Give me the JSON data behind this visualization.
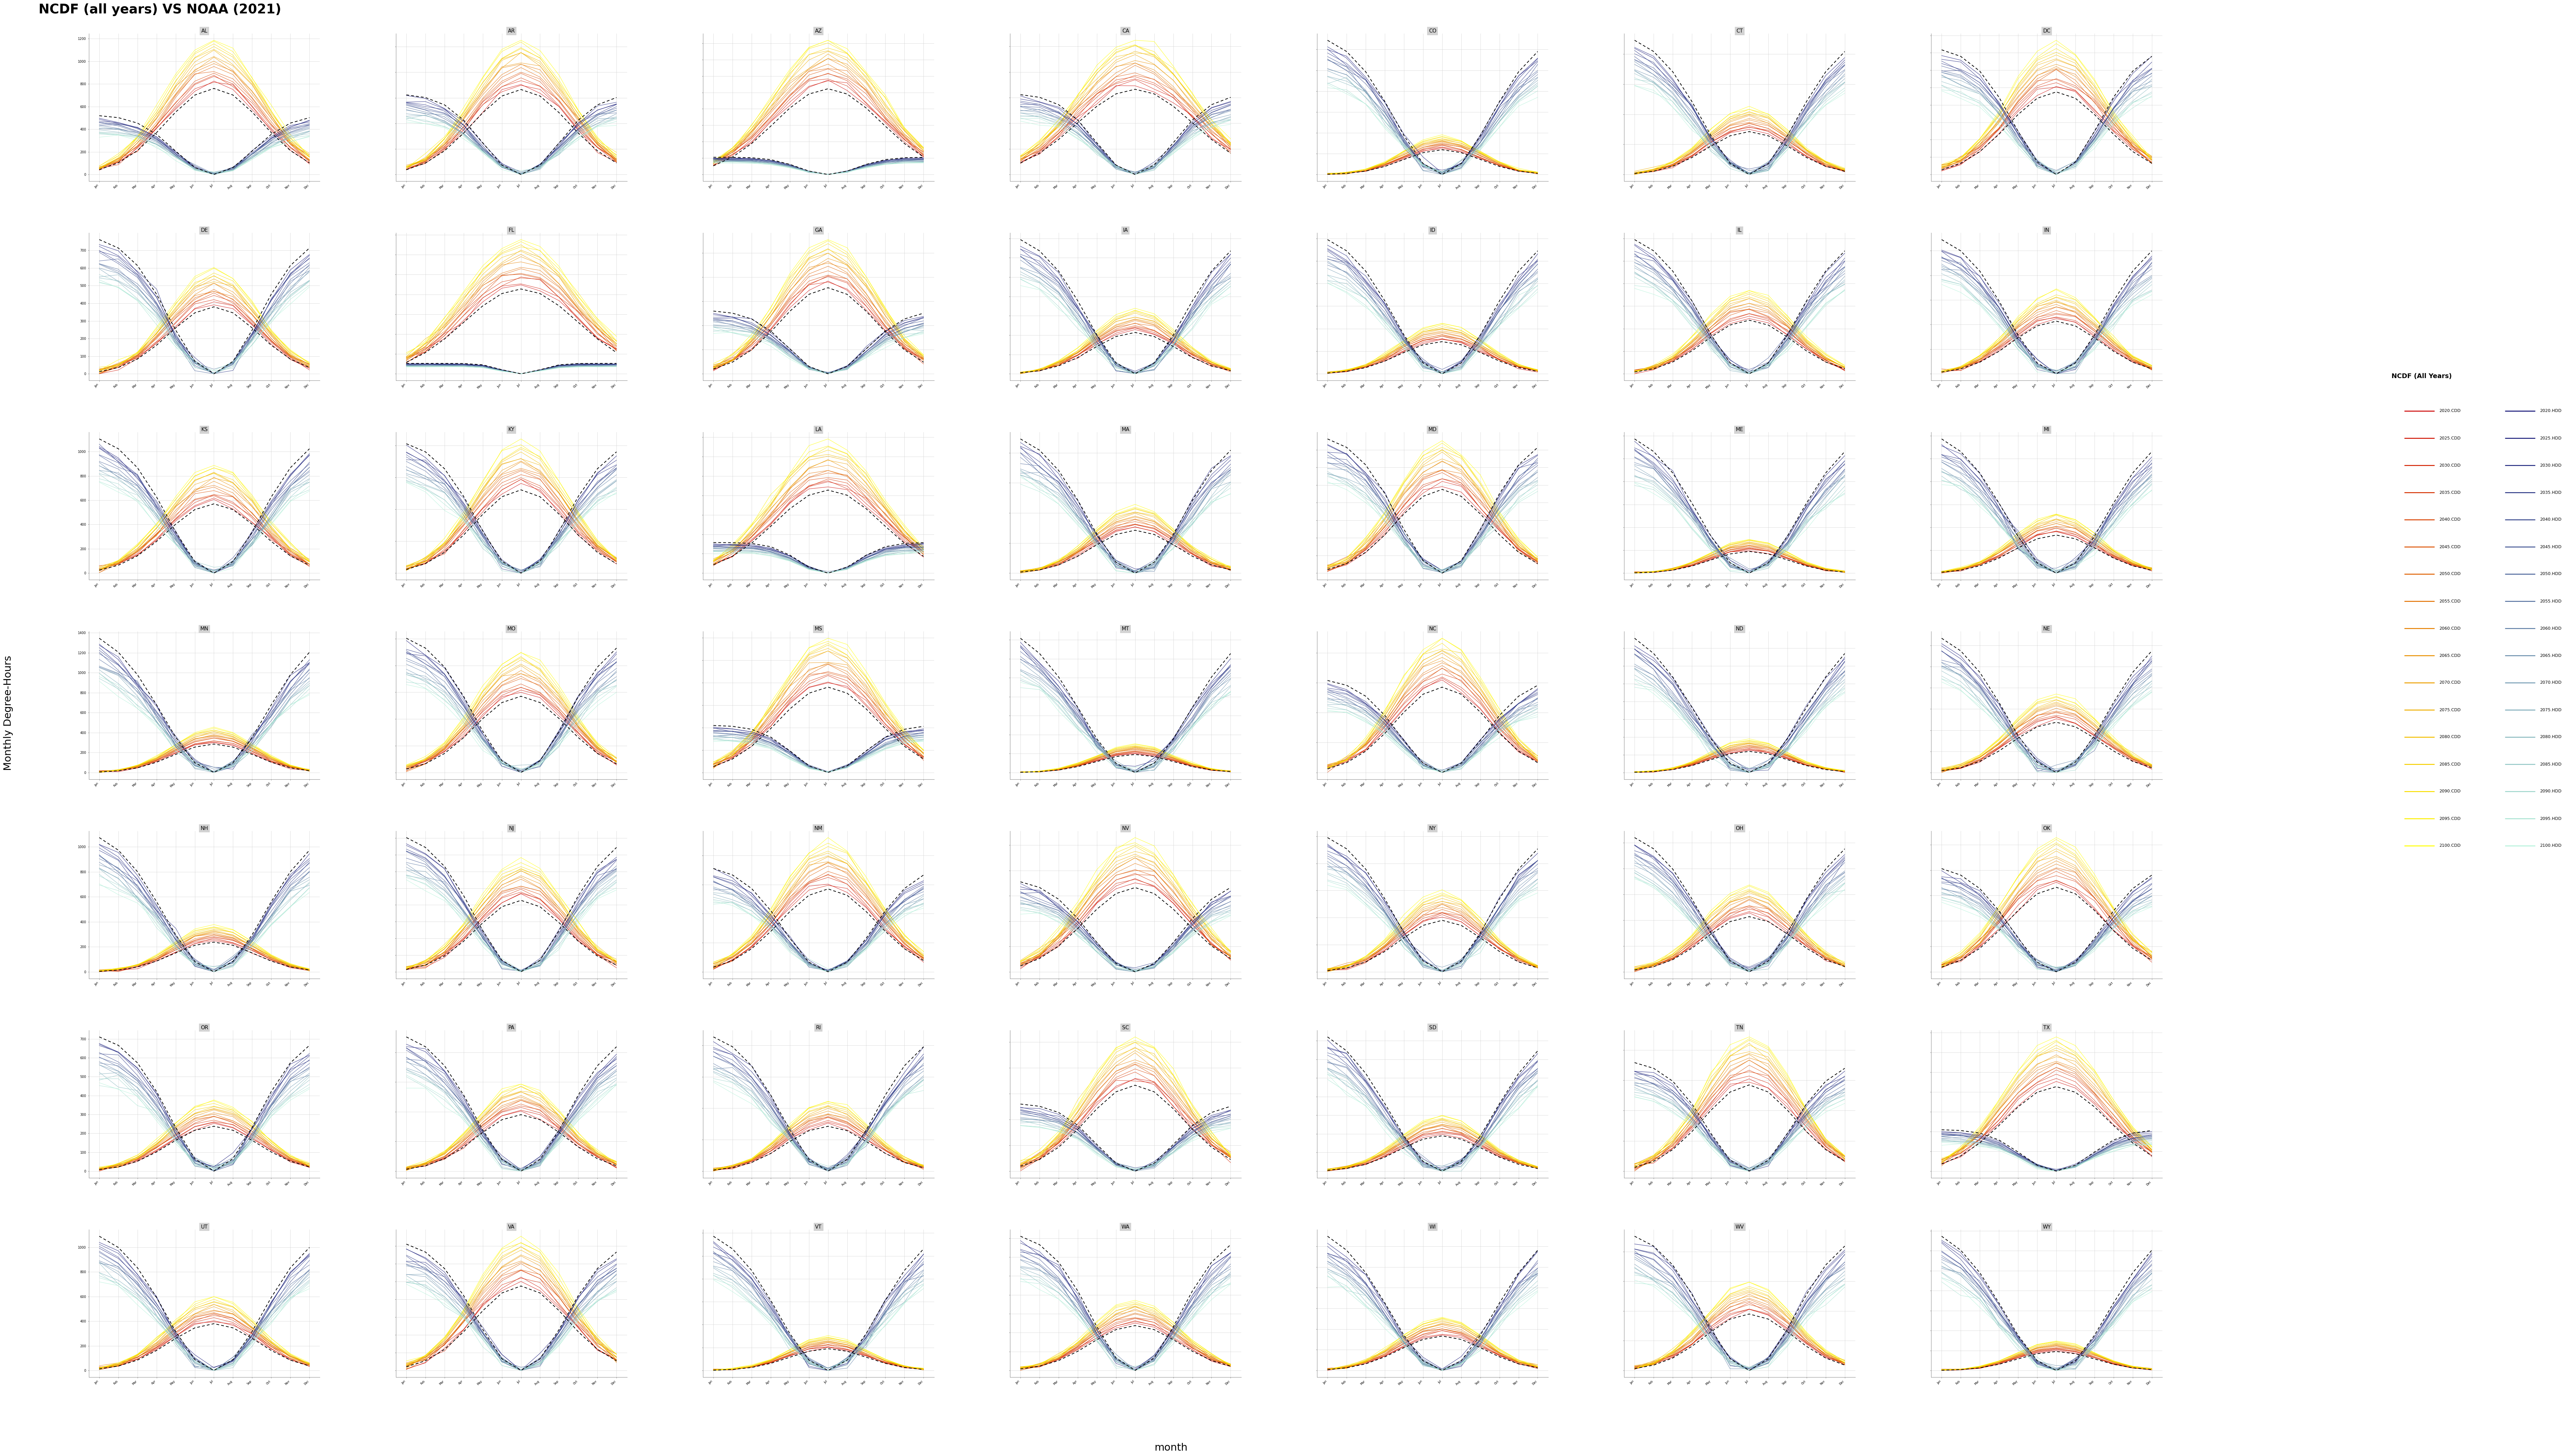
{
  "title": "NCDF (all years) VS NOAA (2021)",
  "xlabel": "month",
  "ylabel": "Monthly Degree-Hours",
  "states": [
    "AL",
    "AR",
    "AZ",
    "CA",
    "CO",
    "CT",
    "DC",
    "DE",
    "FL",
    "GA",
    "IA",
    "ID",
    "IL",
    "IN",
    "KS",
    "KY",
    "LA",
    "MA",
    "MD",
    "ME",
    "MI",
    "MN",
    "MO",
    "MS",
    "MT",
    "NC",
    "ND",
    "NE",
    "NH",
    "NJ",
    "NM",
    "NV",
    "NY",
    "OH",
    "OK",
    "OR",
    "PA",
    "RI",
    "SC",
    "SD",
    "TN",
    "TX",
    "UT",
    "VA",
    "VT",
    "WA",
    "WI",
    "WV",
    "WY"
  ],
  "ncols": 7,
  "nrows": 7,
  "months": [
    "Jan",
    "Feb",
    "Mar",
    "Apr",
    "May",
    "Jun",
    "Jul",
    "Aug",
    "Sep",
    "Oct",
    "Nov",
    "Dec"
  ],
  "years": [
    2020,
    2025,
    2030,
    2035,
    2040,
    2045,
    2050,
    2055,
    2060,
    2065,
    2070,
    2075,
    2080,
    2085,
    2090,
    2095,
    2100
  ],
  "legend_title": "NCDF (All Years)",
  "background_color": "#f0f0f0",
  "plot_bg": "#ffffff",
  "grid_color": "#cccccc"
}
